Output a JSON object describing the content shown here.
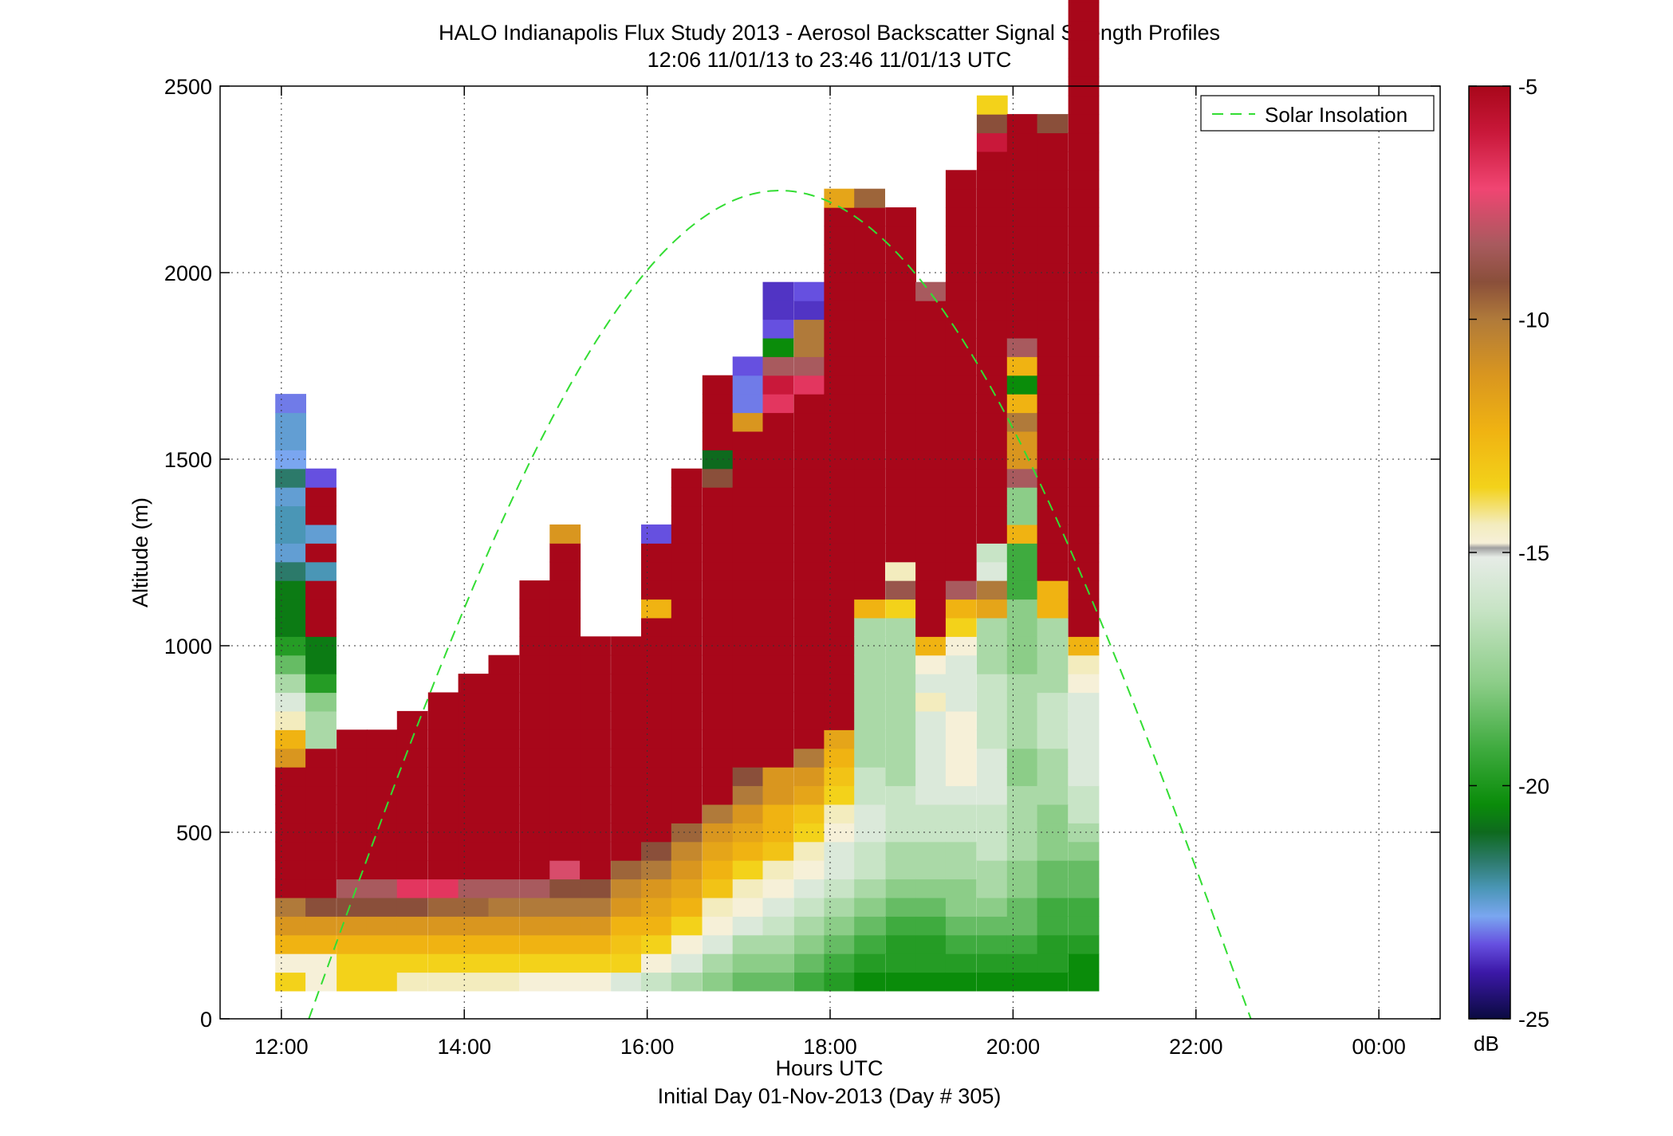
{
  "chart_data": {
    "type": "heatmap",
    "title": "HALO Indianapolis Flux Study 2013 - Aerosol Backscatter Signal Strength Profiles",
    "subtitle": "12:06 11/01/13 to 23:46 11/01/13  UTC",
    "xlabel": "Hours UTC",
    "footer": "Initial Day 01-Nov-2013 (Day # 305)",
    "ylabel": "Altitude (m)",
    "xlim": [
      11.33,
      24.67
    ],
    "ylim": [
      0,
      2500
    ],
    "x_ticks": [
      12,
      14,
      16,
      18,
      20,
      22,
      24
    ],
    "x_tick_labels": [
      "12:00",
      "14:00",
      "16:00",
      "18:00",
      "20:00",
      "22:00",
      "00:00"
    ],
    "y_ticks": [
      0,
      500,
      1000,
      1500,
      2000,
      2500
    ],
    "y_tick_labels": [
      "0",
      "500",
      "1000",
      "1500",
      "2000",
      "2500"
    ],
    "grid": true,
    "legend": {
      "position": "top-right",
      "entries": [
        "Solar Insolation"
      ]
    },
    "colorbar": {
      "range": [
        -25,
        -5
      ],
      "ticks": [
        -5,
        -10,
        -15,
        -20,
        -25
      ],
      "tick_labels": [
        "-5",
        "-10",
        "-15",
        "-20",
        "-25"
      ],
      "label": "dB"
    },
    "cell": {
      "width_hours": 0.333,
      "height_m": 50,
      "z_min_m": 75
    },
    "columns": [
      {
        "t": 12.1,
        "values": [
          -14.0,
          -15.0,
          -13.0,
          -12.0,
          -11.0,
          -5,
          -5,
          -5,
          -5,
          -5,
          -5,
          -5,
          -12.0,
          -13.0,
          -14.5,
          -15.5,
          -16.5,
          -17.5,
          -18.5,
          -19.5,
          -19.5,
          -19.5,
          -20.5,
          -21.5,
          -21.0,
          -21.0,
          -21.5,
          -20.5,
          -22.0,
          -21.5,
          -21.5,
          -22.5
        ]
      },
      {
        "t": 12.43,
        "values": [
          -15.0,
          -15.0,
          -13.0,
          -12.0,
          -10.0,
          -5,
          -5,
          -5,
          -5,
          -5,
          -5,
          -5,
          -5,
          -16.5,
          -16.5,
          -17.0,
          -18.5,
          -19.5,
          -19.5,
          -5,
          -5,
          -5,
          -21.0,
          -5,
          -21.5,
          -5,
          -5,
          -23.0
        ]
      },
      {
        "t": 12.77,
        "values": [
          -14.0,
          -14.0,
          -13.0,
          -12.0,
          -10.0,
          -9.0,
          -5,
          -5,
          -5,
          -5,
          -5,
          -5,
          -5,
          -5
        ]
      },
      {
        "t": 13.1,
        "values": [
          -14.0,
          -14.0,
          -13.0,
          -12.0,
          -10.0,
          -9.0,
          -5,
          -5,
          -5,
          -5,
          -5,
          -5,
          -5,
          -5
        ]
      },
      {
        "t": 13.43,
        "values": [
          -14.5,
          -14.0,
          -13.0,
          -12.0,
          -10.0,
          -7.0,
          -5,
          -5,
          -5,
          -5,
          -5,
          -5,
          -5,
          -5,
          -5
        ]
      },
      {
        "t": 13.77,
        "values": [
          -14.5,
          -14.0,
          -13.0,
          -12.0,
          -10.5,
          -7.0,
          -5,
          -5,
          -5,
          -5,
          -5,
          -5,
          -5,
          -5,
          -5,
          -5
        ]
      },
      {
        "t": 14.1,
        "values": [
          -14.5,
          -14.0,
          -13.0,
          -12.0,
          -10.5,
          -9.0,
          -5,
          -5,
          -5,
          -5,
          -5,
          -5,
          -5,
          -5,
          -5,
          -5,
          -5
        ]
      },
      {
        "t": 14.43,
        "values": [
          -14.5,
          -14.0,
          -13.0,
          -12.0,
          -11.0,
          -9.0,
          -5,
          -5,
          -5,
          -5,
          -5,
          -5,
          -5,
          -5,
          -5,
          -5,
          -5,
          -5
        ]
      },
      {
        "t": 14.77,
        "values": [
          -15.0,
          -14.0,
          -13.0,
          -12.0,
          -11.0,
          -9.0,
          -5,
          -5,
          -5,
          -5,
          -5,
          -5,
          -5,
          -5,
          -5,
          -5,
          -5,
          -5,
          -5,
          -5,
          -5,
          -5
        ]
      },
      {
        "t": 15.1,
        "values": [
          -15.0,
          -14.0,
          -13.0,
          -12.0,
          -11.0,
          -10.0,
          -8.0,
          -5,
          -5,
          -5,
          -5,
          -5,
          -5,
          -5,
          -5,
          -5,
          -5,
          -5,
          -5,
          -5,
          -5,
          -5,
          -5,
          -5,
          -12.0
        ]
      },
      {
        "t": 15.43,
        "values": [
          -15.0,
          -14.0,
          -13.0,
          -12.0,
          -11.0,
          -10.0,
          -5,
          -5,
          -5,
          -5,
          -5,
          -5,
          -5,
          -5,
          -5,
          -5,
          -5,
          -5,
          -5
        ]
      },
      {
        "t": 15.77,
        "values": [
          -15.5,
          -14.0,
          -13.5,
          -13.0,
          -12.0,
          -11.5,
          -10.5,
          -5,
          -5,
          -5,
          -5,
          -5,
          -5,
          -5,
          -5,
          -5,
          -5,
          -5,
          -5
        ]
      },
      {
        "t": 16.1,
        "values": [
          -16.0,
          -15.0,
          -14.0,
          -13.0,
          -12.5,
          -12.0,
          -11.0,
          -10.0,
          -5,
          -5,
          -5,
          -5,
          -5,
          -5,
          -5,
          -5,
          -5,
          -5,
          -5,
          -5,
          -13.0,
          -5,
          -5,
          -5,
          -23.0
        ]
      },
      {
        "t": 16.43,
        "values": [
          -16.5,
          -15.5,
          -15.0,
          -14.0,
          -13.0,
          -12.5,
          -12.0,
          -11.5,
          -10.5,
          -5,
          -5,
          -5,
          -5,
          -5,
          -5,
          -5,
          -5,
          -5,
          -5,
          -5,
          -5,
          -5,
          -5,
          -5,
          -5,
          -5,
          -5,
          -5
        ]
      },
      {
        "t": 16.77,
        "values": [
          -17.0,
          -16.5,
          -15.5,
          -15.0,
          -14.5,
          -13.5,
          -13.0,
          -12.5,
          -12.0,
          -11.0,
          -5,
          -5,
          -5,
          -5,
          -5,
          -5,
          -5,
          -5,
          -5,
          -5,
          -5,
          -5,
          -5,
          -5,
          -5,
          -5,
          -5,
          -10.0,
          -20.0,
          -5,
          -5,
          -5,
          -5
        ]
      },
      {
        "t": 17.1,
        "values": [
          -17.5,
          -17.0,
          -16.5,
          -15.5,
          -15.0,
          -14.5,
          -14.0,
          -13.0,
          -12.5,
          -12.0,
          -11.0,
          -10.0,
          -5,
          -5,
          -5,
          -5,
          -5,
          -5,
          -5,
          -5,
          -5,
          -5,
          -5,
          -5,
          -5,
          -5,
          -5,
          -5,
          -5,
          -5,
          -12.0,
          -22.5,
          -22.5,
          -23.0
        ]
      },
      {
        "t": 17.43,
        "values": [
          -17.5,
          -17.0,
          -16.5,
          -16.0,
          -15.5,
          -15.0,
          -14.5,
          -13.5,
          -13.0,
          -13.0,
          -12.0,
          -12.0,
          -5,
          -5,
          -5,
          -5,
          -5,
          -5,
          -5,
          -5,
          -5,
          -5,
          -5,
          -5,
          -5,
          -5,
          -5,
          -5,
          -5,
          -5,
          -5,
          -7.0,
          -6.0,
          -9.0,
          -19.0,
          -23.0,
          -23.5,
          -23.5
        ]
      },
      {
        "t": 17.77,
        "values": [
          -18.0,
          -17.5,
          -17.0,
          -16.5,
          -16.0,
          -15.5,
          -15.0,
          -14.5,
          -14.0,
          -13.5,
          -12.5,
          -12.0,
          -11.0,
          -5,
          -5,
          -5,
          -5,
          -5,
          -5,
          -5,
          -5,
          -5,
          -5,
          -5,
          -5,
          -5,
          -5,
          -5,
          -5,
          -5,
          -5,
          -5,
          -7.0,
          -9.0,
          -11.0,
          -11.0,
          -23.5,
          -23.0
        ]
      },
      {
        "t": 18.1,
        "values": [
          -18.5,
          -18.0,
          -17.5,
          -17.0,
          -16.5,
          -16.0,
          -15.5,
          -15.5,
          -15.0,
          -14.5,
          -14.0,
          -13.5,
          -13.0,
          -12.5,
          -5,
          -5,
          -5,
          -5,
          -5,
          -5,
          -5,
          -5,
          -5,
          -5,
          -5,
          -5,
          -5,
          -5,
          -5,
          -5,
          -5,
          -5,
          -5,
          -5,
          -5,
          -5,
          -5,
          -5,
          -5,
          -5,
          -5,
          -5,
          -12.5
        ]
      },
      {
        "t": 18.43,
        "values": [
          -19.0,
          -18.5,
          -18.0,
          -17.5,
          -17.0,
          -16.5,
          -16.0,
          -16.0,
          -15.5,
          -15.5,
          -16.0,
          -16.0,
          -16.5,
          -16.5,
          -16.5,
          -16.5,
          -16.5,
          -16.5,
          -16.5,
          -16.5,
          -13.0,
          -5,
          -5,
          -5,
          -5,
          -5,
          -5,
          -5,
          -5,
          -5,
          -5,
          -5,
          -5,
          -5,
          -5,
          -5,
          -5,
          -5,
          -5,
          -5,
          -5,
          -5,
          -10.5
        ]
      },
      {
        "t": 18.77,
        "values": [
          -19.0,
          -18.5,
          -18.5,
          -18.0,
          -17.5,
          -17.0,
          -16.5,
          -16.5,
          -16.0,
          -16.0,
          -16.0,
          -16.5,
          -16.5,
          -16.5,
          -16.5,
          -16.5,
          -16.5,
          -16.5,
          -16.5,
          -16.5,
          -14.0,
          -9.5,
          -14.5,
          -5,
          -5,
          -5,
          -5,
          -5,
          -5,
          -5,
          -5,
          -5,
          -5,
          -5,
          -5,
          -5,
          -5,
          -5,
          -5,
          -5,
          -5,
          -5
        ]
      },
      {
        "t": 19.1,
        "values": [
          -19.0,
          -18.5,
          -18.5,
          -18.0,
          -17.5,
          -17.0,
          -16.5,
          -16.5,
          -16.0,
          -16.0,
          -15.5,
          -15.5,
          -15.5,
          -15.5,
          -15.5,
          -14.5,
          -15.5,
          -15.0,
          -13.0,
          -5,
          -5,
          -5,
          -5,
          -5,
          -5,
          -5,
          -5,
          -5,
          -5,
          -5,
          -5,
          -5,
          -5,
          -5,
          -5,
          -5,
          -5,
          -9.0
        ]
      },
      {
        "t": 19.43,
        "values": [
          -19.0,
          -18.5,
          -18.0,
          -17.5,
          -17.0,
          -17.0,
          -16.5,
          -16.5,
          -16.0,
          -16.0,
          -15.5,
          -15.0,
          -15.0,
          -15.0,
          -15.0,
          -15.5,
          -15.5,
          -15.5,
          -15.0,
          -14.0,
          -13.0,
          -9.0,
          -5,
          -5,
          -5,
          -5,
          -5,
          -5,
          -5,
          -5,
          -5,
          -5,
          -5,
          -5,
          -5,
          -5,
          -5,
          -5,
          -5,
          -5,
          -5,
          -5,
          -5,
          -5
        ]
      },
      {
        "t": 19.77,
        "values": [
          -19.0,
          -18.5,
          -18.0,
          -17.5,
          -17.0,
          -16.5,
          -16.5,
          -16.0,
          -16.0,
          -16.0,
          -15.5,
          -15.5,
          -15.5,
          -16.0,
          -16.0,
          -16.0,
          -16.0,
          -16.5,
          -16.5,
          -16.5,
          -12.5,
          -11.0,
          -15.5,
          -16.0,
          -5,
          -5,
          -5,
          -5,
          -5,
          -5,
          -5,
          -5,
          -5,
          -5,
          -5,
          -5,
          -5,
          -5,
          -5,
          -5,
          -5,
          -5,
          -5,
          -5,
          -5,
          -6.0,
          -10.0,
          -14.0
        ]
      },
      {
        "t": 20.1,
        "values": [
          -19.0,
          -18.5,
          -18.0,
          -17.5,
          -17.5,
          -17.0,
          -17.0,
          -16.5,
          -16.5,
          -16.5,
          -16.5,
          -17.0,
          -17.0,
          -16.5,
          -16.5,
          -16.5,
          -16.5,
          -17.0,
          -17.0,
          -17.0,
          -17.0,
          -18.0,
          -18.0,
          -18.0,
          -13.0,
          -17.0,
          -17.0,
          -9.0,
          -12.0,
          -12.0,
          -11.0,
          -13.0,
          -19.0,
          -13.0,
          -9.0,
          -5,
          -5,
          -5,
          -5,
          -5,
          -5,
          -5,
          -5,
          -5,
          -5,
          -5,
          -5
        ]
      },
      {
        "t": 20.43,
        "values": [
          -19.0,
          -18.5,
          -18.5,
          -18.0,
          -18.0,
          -17.5,
          -17.5,
          -17.0,
          -17.0,
          -17.0,
          -16.5,
          -16.5,
          -16.5,
          -16.0,
          -16.0,
          -16.0,
          -16.5,
          -16.5,
          -16.5,
          -16.5,
          -13.0,
          -13.0,
          -5,
          -5,
          -5,
          -5,
          -5,
          -5,
          -5,
          -5,
          -5,
          -5,
          -5,
          -5,
          -5,
          -5,
          -5,
          -5,
          -5,
          -5,
          -5,
          -5,
          -5,
          -5,
          -5,
          -5,
          -10.0
        ]
      },
      {
        "t": 20.77,
        "values": [
          -19.0,
          -19.0,
          -18.5,
          -18.0,
          -18.0,
          -17.5,
          -17.5,
          -17.0,
          -16.5,
          -16.0,
          -16.0,
          -15.5,
          -15.5,
          -15.5,
          -15.5,
          -15.5,
          -15.0,
          -14.5,
          -13.0,
          -5,
          -5,
          -5,
          -5,
          -5,
          -5,
          -5,
          -5,
          -5,
          -5,
          -5,
          -5,
          -5,
          -5,
          -5,
          -5,
          -5,
          -5,
          -5,
          -5,
          -5,
          -5,
          -5,
          -5,
          -5,
          -5,
          -5,
          -5,
          -5,
          -5,
          -5,
          -5,
          -5,
          -5,
          -5,
          -5,
          -5,
          -5,
          -5,
          -5,
          -5,
          -5,
          -5,
          -5,
          -5,
          -5,
          -5,
          -5
        ]
      }
    ]
  }
}
